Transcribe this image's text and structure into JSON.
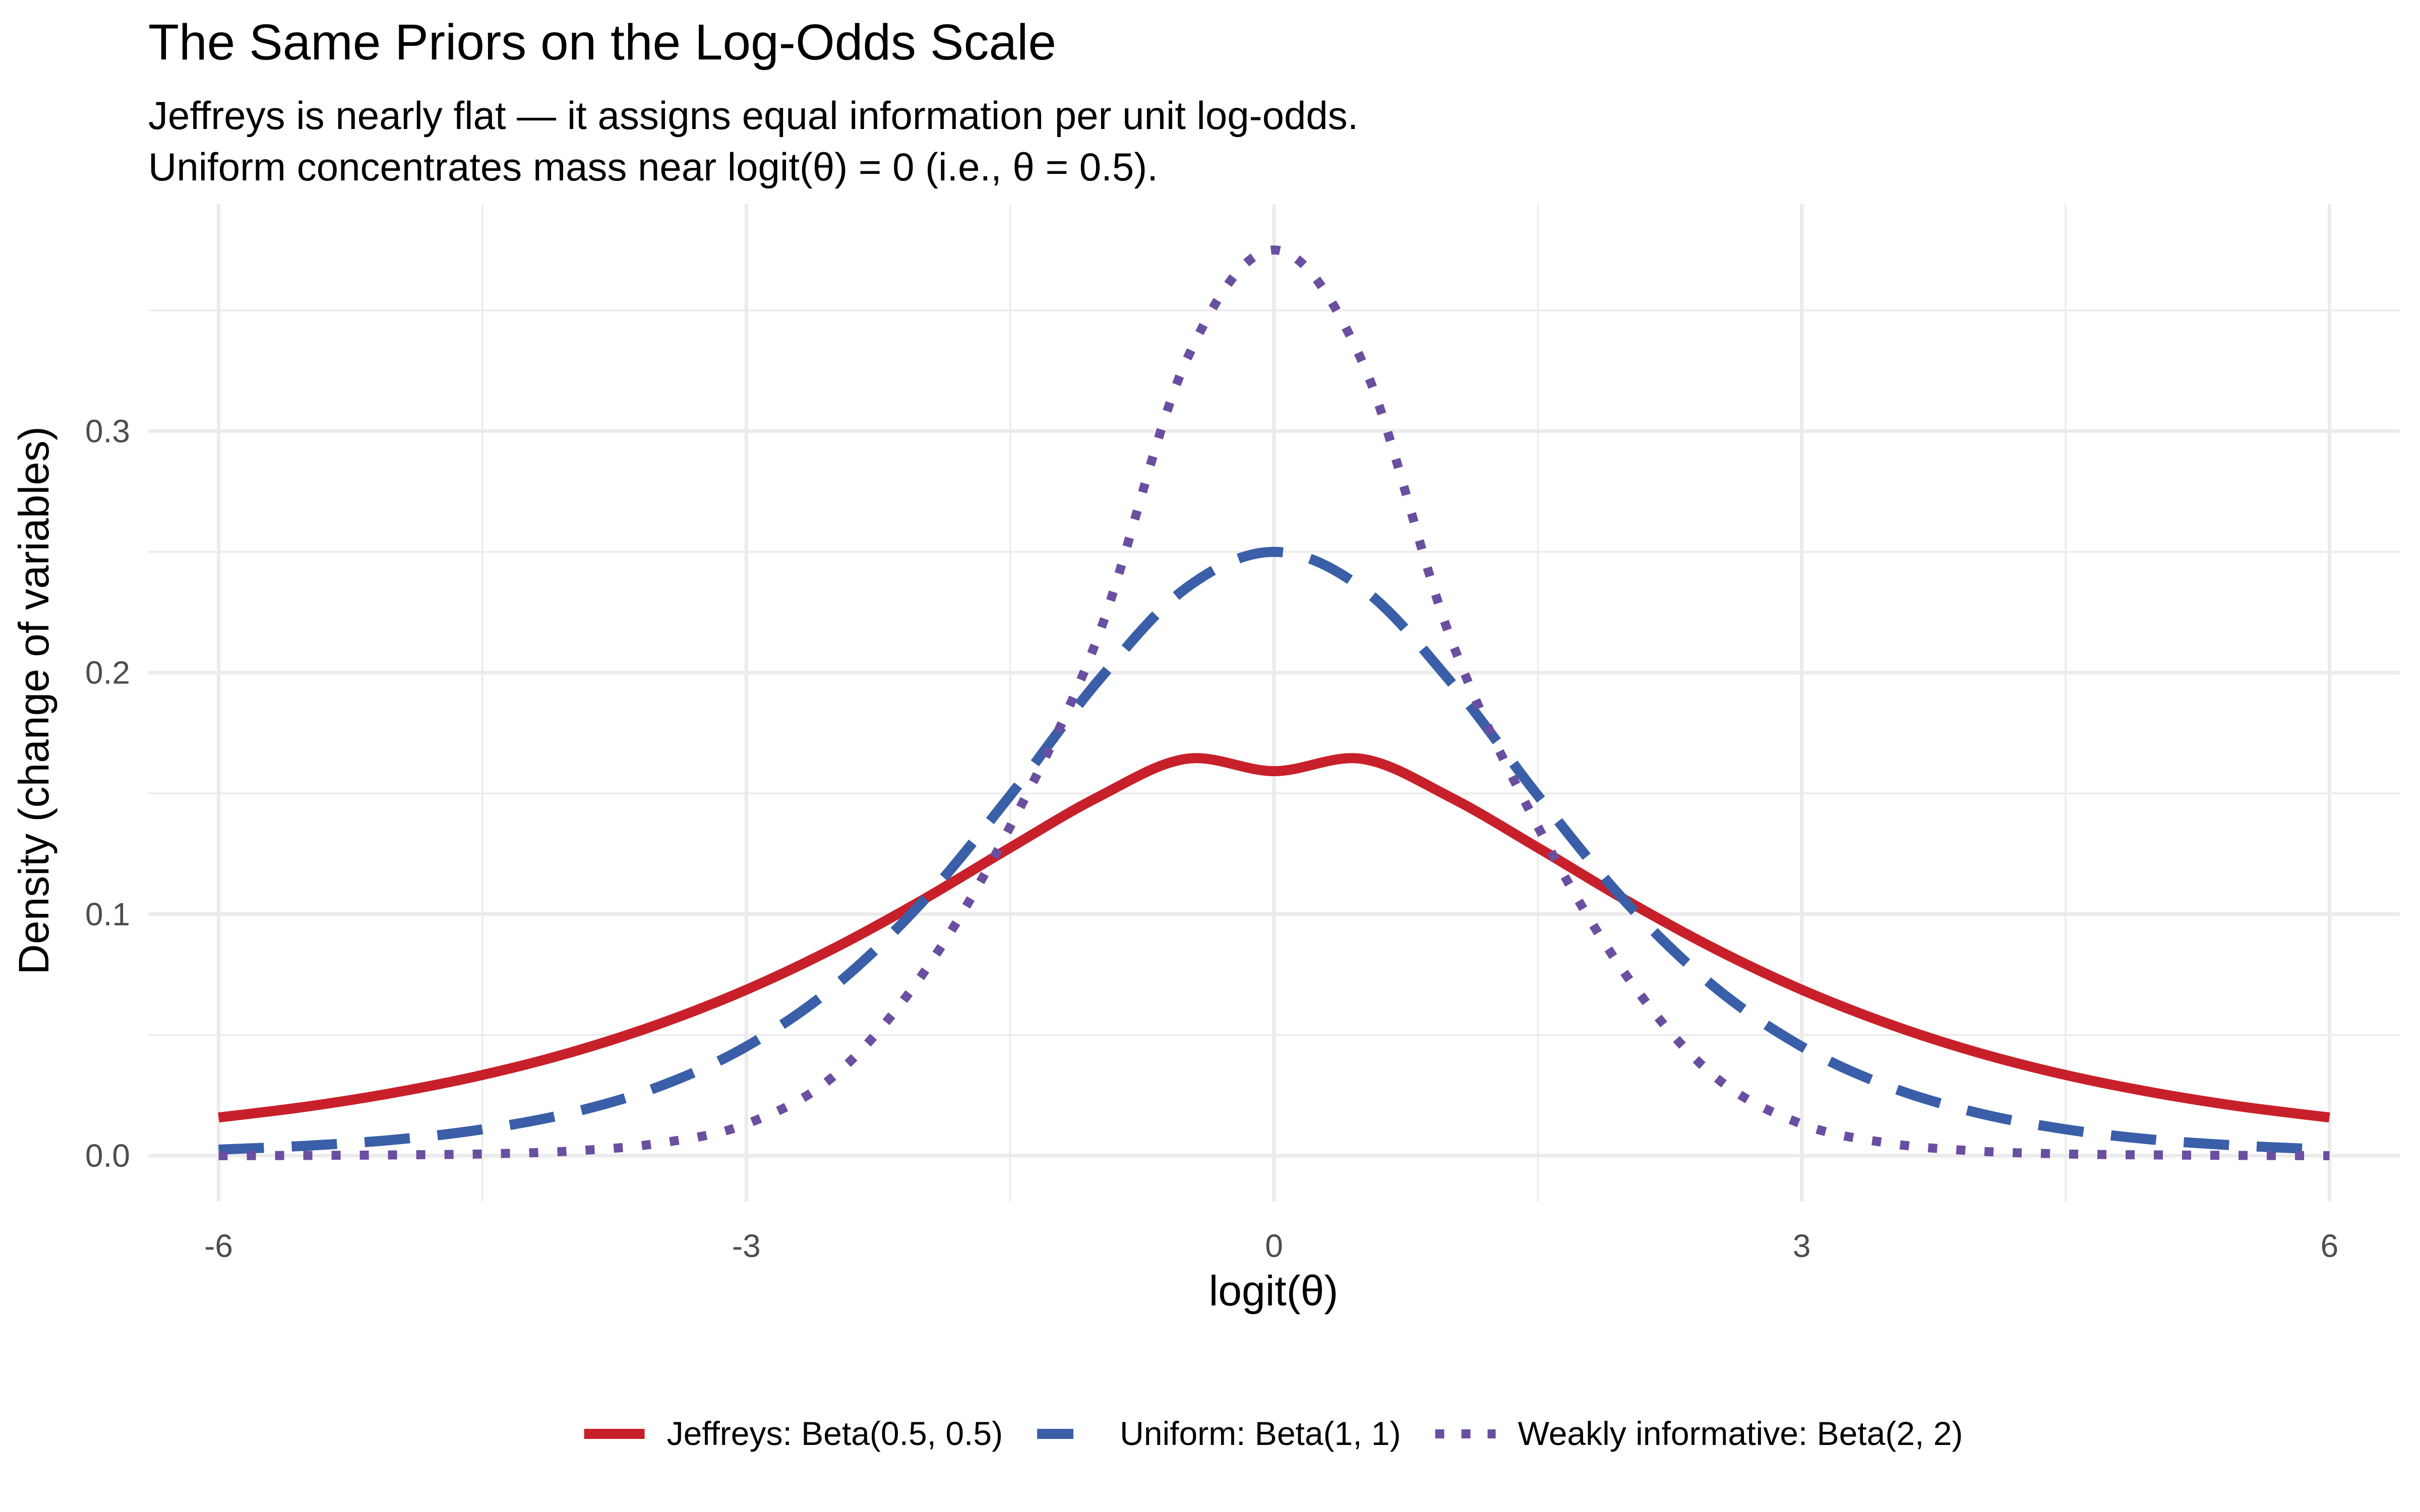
{
  "chart_data": {
    "type": "line",
    "title": "The Same Priors on the Log-Odds Scale",
    "subtitle_lines": [
      "Jeffreys is nearly flat — it assigns equal information per unit log-odds.",
      "Uniform concentrates mass near logit(θ) = 0 (i.e., θ = 0.5)."
    ],
    "xlabel": "logit(θ)",
    "ylabel": "Density (change of variables)",
    "xlim": [
      -6.4,
      6.4
    ],
    "ylim": [
      -0.019,
      0.394
    ],
    "x_ticks": [
      {
        "value": -6,
        "label": "-6"
      },
      {
        "value": -3,
        "label": "-3"
      },
      {
        "value": 0,
        "label": "0"
      },
      {
        "value": 3,
        "label": "3"
      },
      {
        "value": 6,
        "label": "6"
      }
    ],
    "x_minor": [
      -4.5,
      -1.5,
      1.5,
      4.5
    ],
    "y_ticks": [
      {
        "value": 0.0,
        "label": "0.0"
      },
      {
        "value": 0.1,
        "label": "0.1"
      },
      {
        "value": 0.2,
        "label": "0.2"
      },
      {
        "value": 0.3,
        "label": "0.3"
      }
    ],
    "y_minor": [
      0.05,
      0.15,
      0.25,
      0.35
    ],
    "grid": true,
    "legend_position": "bottom",
    "x": [
      -6,
      -5.5,
      -5,
      -4.5,
      -4,
      -3.5,
      -3,
      -2.5,
      -2,
      -1.5,
      -1,
      -0.5,
      0,
      0.5,
      1,
      1.5,
      2,
      2.5,
      3,
      3.5,
      4,
      4.5,
      5,
      5.5,
      6
    ],
    "series": [
      {
        "name": "Jeffreys: Beta(0.5, 0.5)",
        "color": "#c8202a",
        "style": "solid",
        "values": [
          0.0158,
          0.0203,
          0.0261,
          0.0334,
          0.0427,
          0.0544,
          0.0687,
          0.0859,
          0.1058,
          0.1275,
          0.1485,
          0.1643,
          0.1592,
          0.1643,
          0.1485,
          0.1275,
          0.1058,
          0.0859,
          0.0687,
          0.0544,
          0.0427,
          0.0334,
          0.0261,
          0.0203,
          0.0158
        ]
      },
      {
        "name": "Uniform: Beta(1, 1)",
        "color": "#3a5fa8",
        "style": "dashed",
        "values": [
          0.0025,
          0.0041,
          0.0066,
          0.0109,
          0.0177,
          0.0285,
          0.0452,
          0.0701,
          0.105,
          0.1491,
          0.1966,
          0.235,
          0.25,
          0.235,
          0.1966,
          0.1491,
          0.105,
          0.0701,
          0.0452,
          0.0285,
          0.0177,
          0.0109,
          0.0066,
          0.0041,
          0.0025
        ]
      },
      {
        "name": "Weakly informative: Beta(2, 2)",
        "color": "#6a4fa0",
        "style": "dotted",
        "values": [
          0.0,
          0.0001,
          0.0003,
          0.0007,
          0.0019,
          0.0051,
          0.0131,
          0.0331,
          0.0749,
          0.1362,
          0.215,
          0.329,
          0.375,
          0.329,
          0.215,
          0.1362,
          0.0749,
          0.0331,
          0.0131,
          0.0051,
          0.0019,
          0.0007,
          0.0003,
          0.0001,
          0.0
        ]
      }
    ]
  }
}
